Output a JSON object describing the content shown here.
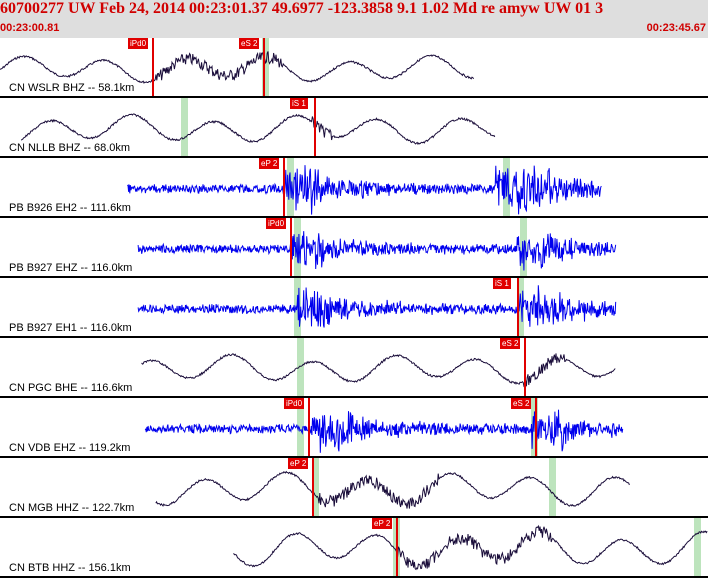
{
  "header": {
    "title": "60700277 UW Feb 24, 2014 00:23:01.37   49.6977 -123.3858  9.1 1.02 Md re amyw UW 01   3",
    "start_time": "00:23:00.81",
    "end_time": "00:23:45.67"
  },
  "colors": {
    "header_bg": "#dedede",
    "header_text": "#d00000",
    "pick": "#e00000",
    "broadband_trace": "#1a0d3a",
    "short_period_trace": "#0000ee",
    "theoretical_window": "#b9e3b9"
  },
  "channels": [
    {
      "label": "CN WSLR BHZ -- 58.1km",
      "style": "long",
      "start": 0.0,
      "end": 0.67,
      "burst": [
        0.22,
        0.4
      ],
      "picks": [
        {
          "label": "iPd0",
          "t": 0.215
        },
        {
          "label": "eS 2",
          "t": 0.372
        }
      ],
      "green": [
        0.37
      ],
      "amp": 0.55
    },
    {
      "label": "CN NLLB BHZ -- 68.0km",
      "style": "long",
      "start": 0.03,
      "end": 0.7,
      "burst": [
        0.44,
        0.47
      ],
      "picks": [
        {
          "label": "iS 1",
          "t": 0.443
        }
      ],
      "green": [
        0.255
      ],
      "amp": 0.6
    },
    {
      "label": "PB B926 EH2 -- 111.6km",
      "style": "short",
      "start": 0.18,
      "end": 0.85,
      "burst": [
        0.4,
        0.45,
        0.7,
        0.78
      ],
      "picks": [
        {
          "label": "eP 2",
          "t": 0.4
        }
      ],
      "green": [
        0.405,
        0.71
      ],
      "amp": 0.85
    },
    {
      "label": "PB B927 EHZ -- 116.0km",
      "style": "short",
      "start": 0.195,
      "end": 0.87,
      "burst": [
        0.41,
        0.46,
        0.73,
        0.8
      ],
      "picks": [
        {
          "label": "iPd0",
          "t": 0.41
        }
      ],
      "green": [
        0.415,
        0.735
      ],
      "amp": 0.7
    },
    {
      "label": "PB B927 EH1 -- 116.0km",
      "style": "short",
      "start": 0.195,
      "end": 0.87,
      "burst": [
        0.42,
        0.47,
        0.73,
        0.8
      ],
      "picks": [
        {
          "label": "iS 1",
          "t": 0.73
        }
      ],
      "green": [
        0.415,
        0.73
      ],
      "amp": 0.75
    },
    {
      "label": "CN PGC BHE -- 116.6km",
      "style": "long",
      "start": 0.2,
      "end": 0.87,
      "burst": [
        0.74,
        0.8
      ],
      "picks": [
        {
          "label": "eS 2",
          "t": 0.74
        }
      ],
      "green": [
        0.42
      ],
      "amp": 0.6
    },
    {
      "label": "CN VDB EHZ -- 119.2km",
      "style": "short",
      "start": 0.205,
      "end": 0.88,
      "burst": [
        0.44,
        0.5,
        0.75,
        0.8
      ],
      "picks": [
        {
          "label": "iPd0",
          "t": 0.435
        },
        {
          "label": "eS 2",
          "t": 0.755
        }
      ],
      "green": [
        0.42,
        0.75
      ],
      "amp": 0.75
    },
    {
      "label": "CN MGB HHZ -- 122.7km",
      "style": "long",
      "start": 0.22,
      "end": 0.89,
      "burst": [
        0.45,
        0.62
      ],
      "picks": [
        {
          "label": "eP 2",
          "t": 0.44
        }
      ],
      "green": [
        0.44,
        0.775
      ],
      "amp": 0.7
    },
    {
      "label": "CN BTB HHZ -- 156.1km",
      "style": "long",
      "start": 0.33,
      "end": 1.0,
      "burst": [
        0.56,
        0.78
      ],
      "picks": [
        {
          "label": "eP 2",
          "t": 0.56
        }
      ],
      "green": [
        0.555,
        0.98
      ],
      "amp": 0.75
    }
  ]
}
